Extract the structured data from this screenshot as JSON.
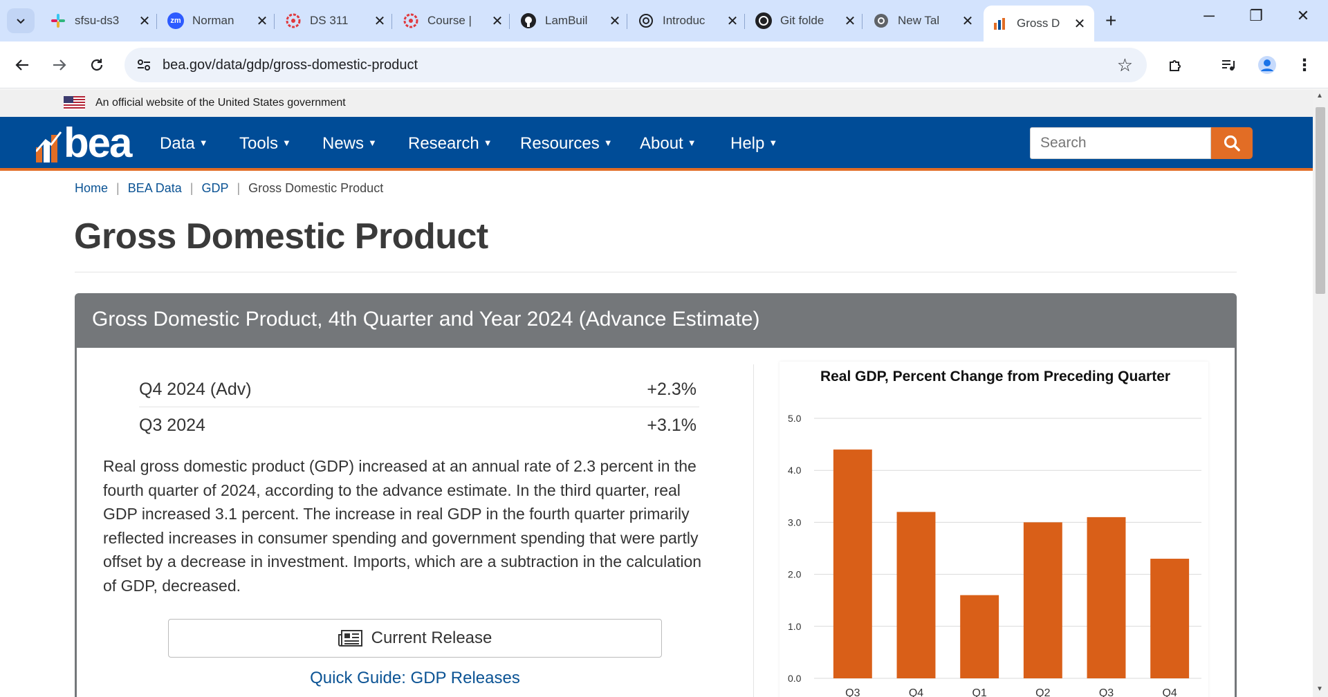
{
  "browser": {
    "tabs": [
      {
        "label": "sfsu-ds3",
        "icon": "slack-icon"
      },
      {
        "label": "Norman",
        "icon": "zoom-icon"
      },
      {
        "label": "DS 311",
        "icon": "canvas-icon"
      },
      {
        "label": "Course |",
        "icon": "canvas-icon"
      },
      {
        "label": "LamBuil",
        "icon": "github-icon"
      },
      {
        "label": "Introduc",
        "icon": "openai-icon"
      },
      {
        "label": "Git folde",
        "icon": "openai-icon"
      },
      {
        "label": "New Tal",
        "icon": "chrome-icon"
      },
      {
        "label": "Gross D",
        "icon": "bea-icon",
        "active": true
      }
    ],
    "url": "bea.gov/data/gdp/gross-domestic-product"
  },
  "gov_banner": "An official website of the United States government",
  "nav": {
    "logo": "bea",
    "items": [
      "Data",
      "Tools",
      "News",
      "Research",
      "Resources",
      "About",
      "Help"
    ],
    "search_placeholder": "Search"
  },
  "breadcrumb": [
    "Home",
    "BEA Data",
    "GDP",
    "Gross Domestic Product"
  ],
  "page_title": "Gross Domestic Product",
  "panel": {
    "title": "Gross Domestic Product, 4th Quarter and Year 2024 (Advance Estimate)",
    "stats": [
      {
        "label": "Q4 2024 (Adv)",
        "value": "+2.3%"
      },
      {
        "label": "Q3 2024",
        "value": "+3.1%"
      }
    ],
    "summary": "Real gross domestic product (GDP) increased at an annual rate of 2.3 percent in the fourth quarter of 2024, according to the advance estimate. In the third quarter, real GDP increased 3.1 percent. The increase in real GDP in the fourth quarter primarily reflected increases in consumer spending and government spending that were partly offset by a decrease in investment. Imports, which are a subtraction in the calculation of GDP, decreased.",
    "release_button": "Current Release",
    "quick_guide": "Quick Guide: GDP Releases"
  },
  "chart_data": {
    "type": "bar",
    "title": "Real GDP, Percent Change from Preceding Quarter",
    "categories": [
      "Q3",
      "Q4",
      "Q1",
      "Q2",
      "Q3",
      "Q4"
    ],
    "values": [
      4.4,
      3.2,
      1.6,
      3.0,
      3.1,
      2.3
    ],
    "yticks": [
      "0.0",
      "1.0",
      "2.0",
      "3.0",
      "4.0",
      "5.0"
    ],
    "ylim": [
      0,
      5
    ],
    "bar_color": "#d95f18",
    "grid": true
  }
}
